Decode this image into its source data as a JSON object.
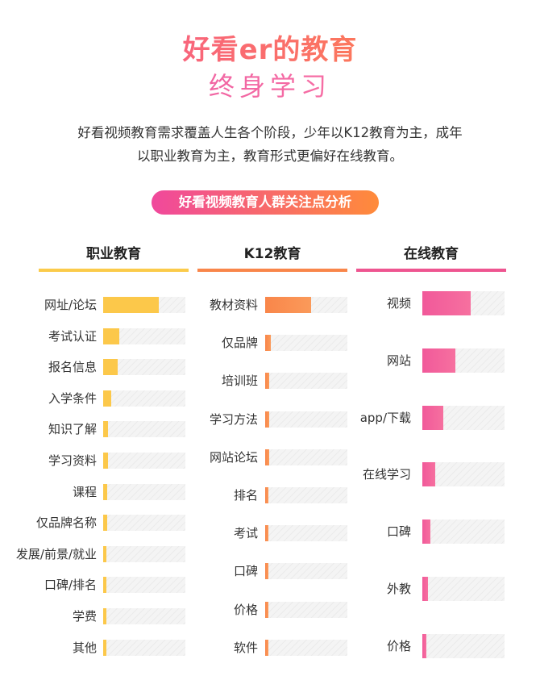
{
  "header": {
    "title_line1": "好看er的教育",
    "title_line2": "终身学习",
    "intro_line1": "好看视频教育需求覆盖人生各个阶段，少年以K12教育为主，成年",
    "intro_line2": "以职业教育为主，教育形式更偏好在线教育。",
    "pill_label": "好看视频教育人群关注点分析"
  },
  "colors": {
    "vocational": "#fcc84a",
    "k12": "#f9864a",
    "online": "#f1599a"
  },
  "chart_data": [
    {
      "type": "bar",
      "title": "职业教育",
      "categories": [
        "网址/论坛",
        "考试认证",
        "报名信息",
        "入学条件",
        "知识了解",
        "学习资料",
        "课程",
        "仅品牌名称",
        "发展/前景/就业",
        "口碑/排名",
        "学费",
        "其他"
      ],
      "values": [
        0.68,
        0.2,
        0.18,
        0.1,
        0.06,
        0.06,
        0.05,
        0.05,
        0.04,
        0.04,
        0.03,
        0.03
      ],
      "ylim": [
        0,
        1
      ]
    },
    {
      "type": "bar",
      "title": "K12教育",
      "categories": [
        "教材资料",
        "仅品牌",
        "培训班",
        "学习方法",
        "网站论坛",
        "排名",
        "考试",
        "口碑",
        "价格",
        "软件"
      ],
      "values": [
        0.56,
        0.07,
        0.05,
        0.05,
        0.05,
        0.03,
        0.03,
        0.03,
        0.03,
        0.03
      ],
      "ylim": [
        0,
        1
      ]
    },
    {
      "type": "bar",
      "title": "在线教育",
      "categories": [
        "视频",
        "网站",
        "app/下载",
        "在线学习",
        "口碑",
        "外教",
        "价格"
      ],
      "values": [
        0.59,
        0.4,
        0.25,
        0.16,
        0.1,
        0.07,
        0.05
      ],
      "ylim": [
        0,
        1
      ]
    }
  ]
}
